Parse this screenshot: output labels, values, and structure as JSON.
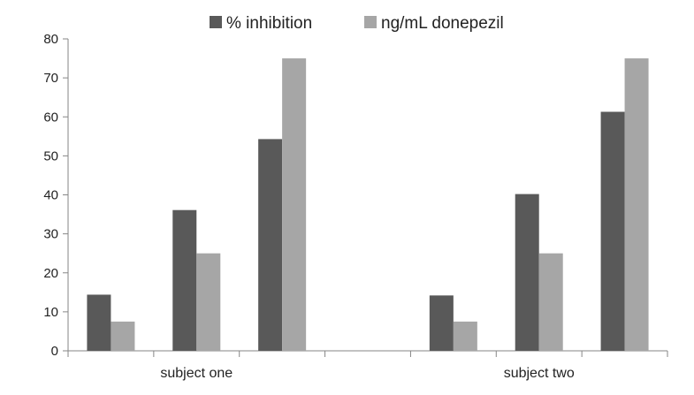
{
  "chart_data": {
    "type": "bar",
    "title": "",
    "xlabel": "",
    "ylabel": "",
    "ylim": [
      0,
      80
    ],
    "yticks": [
      0,
      10,
      20,
      30,
      40,
      50,
      60,
      70,
      80
    ],
    "grid": false,
    "legend_position": "top",
    "groups": [
      {
        "label": "subject one",
        "bars_per_series": 3
      },
      {
        "label": "subject two",
        "bars_per_series": 3
      }
    ],
    "series": [
      {
        "name": "% inhibition",
        "color": "#595959",
        "values": [
          14.4,
          36.1,
          54.3,
          14.2,
          40.2,
          61.3
        ]
      },
      {
        "name": "ng/mL donepezil",
        "color": "#a6a6a6",
        "values": [
          7.5,
          25,
          75,
          7.5,
          25,
          75
        ]
      }
    ]
  }
}
